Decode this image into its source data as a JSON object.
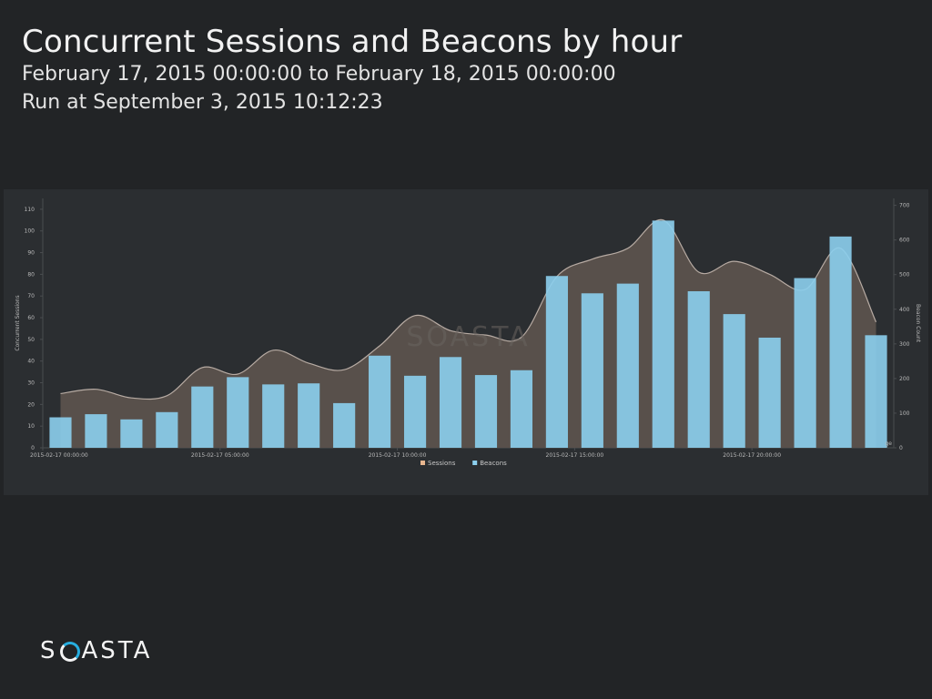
{
  "header": {
    "title": "Concurrent Sessions and Beacons by hour",
    "date_range": "February 17, 2015 00:00:00 to February 18, 2015 00:00:00",
    "run_at": "Run at September 3, 2015 10:12:23"
  },
  "brand": {
    "pre": "S",
    "post": "ASTA",
    "ring_accent_color": "#27aee0"
  },
  "chart_data": {
    "type": "bar",
    "ylabel": "Concurrent Sessions",
    "y2label": "Beacon Count",
    "ylim": [
      0,
      115
    ],
    "y2lim": [
      0,
      720
    ],
    "yticks": [
      "0",
      "10",
      "20",
      "30",
      "40",
      "50",
      "60",
      "70",
      "80",
      "90",
      "100",
      "110"
    ],
    "y2ticks": [
      "0",
      "100",
      "200",
      "300",
      "400",
      "500",
      "600",
      "700"
    ],
    "xtick_labels": [
      {
        "index": 0,
        "label": "2015-02-17 00:00:00"
      },
      {
        "index": 5,
        "label": "2015-02-17 05:00:00"
      },
      {
        "index": 10,
        "label": "2015-02-17 10:00:00"
      },
      {
        "index": 15,
        "label": "2015-02-17 15:00:00"
      },
      {
        "index": 20,
        "label": "2015-02-17 20:00:00"
      }
    ],
    "corner_label": "ge",
    "watermark": "SOASTA",
    "legend": [
      {
        "name": "Sessions",
        "color": "#e8b68f"
      },
      {
        "name": "Beacons",
        "color": "#8ccfee"
      }
    ],
    "series": [
      {
        "name": "Sessions",
        "type": "area",
        "axis": "left",
        "color": "#5b524d",
        "line_color": "#b7aba3",
        "values": [
          25,
          27,
          23,
          24,
          37,
          34,
          45,
          39,
          36,
          47,
          61,
          54,
          52,
          51,
          79,
          87,
          92,
          105,
          81,
          86,
          80,
          73,
          92,
          58
        ]
      },
      {
        "name": "Beacons",
        "type": "bar",
        "axis": "right",
        "color": "#8ccfee",
        "values": [
          88,
          97,
          82,
          103,
          177,
          204,
          183,
          186,
          129,
          266,
          208,
          262,
          210,
          224,
          496,
          446,
          474,
          656,
          452,
          386,
          318,
          490,
          610,
          325
        ]
      }
    ]
  }
}
